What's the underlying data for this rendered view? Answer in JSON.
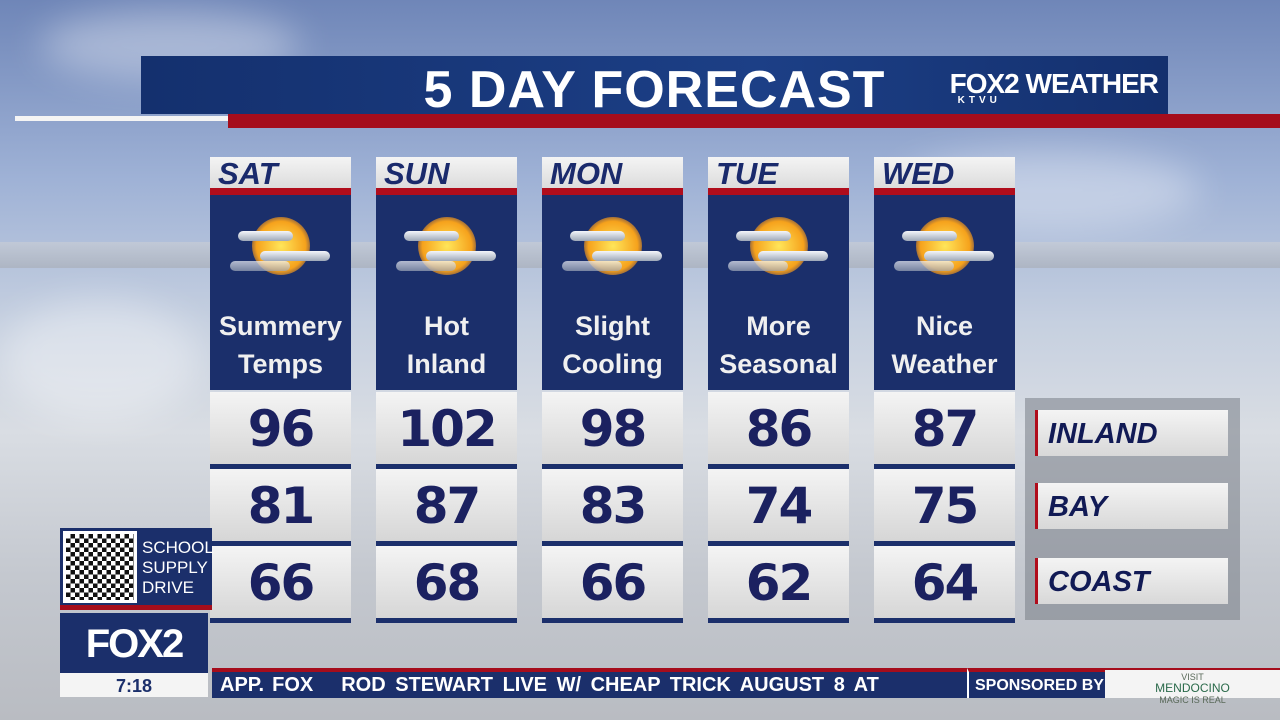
{
  "header": {
    "title": "5 DAY FORECAST",
    "brand": "FOX2 WEATHER",
    "brand_sub": "KTVU"
  },
  "days": [
    {
      "day": "SAT",
      "line1": "Summery",
      "line2": "Temps",
      "icon": "partly-cloudy-sun-icon",
      "inland": "96",
      "bay": "81",
      "coast": "66"
    },
    {
      "day": "SUN",
      "line1": "Hot",
      "line2": "Inland",
      "icon": "partly-cloudy-sun-icon",
      "inland": "102",
      "bay": "87",
      "coast": "68"
    },
    {
      "day": "MON",
      "line1": "Slight",
      "line2": "Cooling",
      "icon": "partly-cloudy-sun-icon",
      "inland": "98",
      "bay": "83",
      "coast": "66"
    },
    {
      "day": "TUE",
      "line1": "More",
      "line2": "Seasonal",
      "icon": "partly-cloudy-sun-icon",
      "inland": "86",
      "bay": "74",
      "coast": "62"
    },
    {
      "day": "WED",
      "line1": "Nice",
      "line2": "Weather",
      "icon": "partly-cloudy-sun-icon",
      "inland": "87",
      "bay": "75",
      "coast": "64"
    }
  ],
  "legend": {
    "inland": "INLAND",
    "bay": "BAY",
    "coast": "COAST"
  },
  "promo": {
    "line1": "SCHOOL",
    "line2": "SUPPLY",
    "line3": "DRIVE"
  },
  "station": {
    "logo": "FOX2",
    "time": "7:18"
  },
  "ticker": {
    "lead": "APP.",
    "fox": "FOX",
    "text": "ROD STEWART LIVE W/ CHEAP TRICK AUGUST 8 AT",
    "sponsored": "SPONSORED BY"
  },
  "sponsor": {
    "top": "VISIT",
    "name": "MENDOCINO",
    "tag": "MAGIC IS REAL"
  },
  "colors": {
    "navy": "#1b2f6b",
    "red": "#b00d1c",
    "temp_text": "#1b2160"
  }
}
